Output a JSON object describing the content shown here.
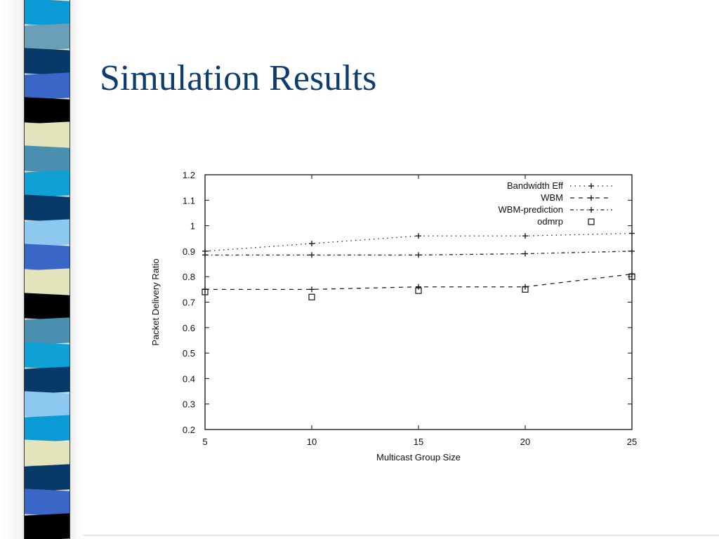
{
  "slide": {
    "title": "Simulation Results"
  },
  "decor": {
    "stripe_colors": [
      "#0a9ad6",
      "#6b9fb8",
      "#073a68",
      "#3a66c8",
      "#000000",
      "#e4e4bc",
      "#4a8eb0",
      "#0fa0d6",
      "#073a68",
      "#8cc8f0",
      "#3a66c8",
      "#e4e4bc",
      "#000000",
      "#4a8eb0",
      "#0fa0d6",
      "#073a68",
      "#8cc8f0",
      "#0a9ad6",
      "#e4e4bc",
      "#073a68",
      "#3a66c8",
      "#000000"
    ]
  },
  "chart_data": {
    "type": "line",
    "title": "",
    "xlabel": "Multicast Group Size",
    "ylabel": "Packet Delivery Ratio",
    "xlim": [
      5,
      25
    ],
    "ylim": [
      0.2,
      1.2
    ],
    "xticks": [
      "5",
      "10",
      "15",
      "20",
      "25"
    ],
    "yticks": [
      "0.2",
      "0.3",
      "0.4",
      "0.5",
      "0.6",
      "0.7",
      "0.8",
      "0.9",
      "1",
      "1.1",
      "1.2"
    ],
    "grid": false,
    "legend_position": "top-right",
    "series": [
      {
        "name": "Bandwidth Eff",
        "style": "dotted",
        "marker": "plus",
        "x": [
          5,
          10,
          15,
          20,
          25
        ],
        "y": [
          0.9,
          0.93,
          0.96,
          0.96,
          0.97
        ]
      },
      {
        "name": "WBM",
        "style": "dashed",
        "marker": "plus",
        "x": [
          5,
          10,
          15,
          20,
          25
        ],
        "y": [
          0.75,
          0.75,
          0.76,
          0.76,
          0.81
        ]
      },
      {
        "name": "WBM-prediction",
        "style": "dashdot",
        "marker": "plus",
        "x": [
          5,
          10,
          15,
          20,
          25
        ],
        "y": [
          0.885,
          0.885,
          0.885,
          0.89,
          0.9
        ]
      },
      {
        "name": "odmrp",
        "style": "none",
        "marker": "square",
        "x": [
          5,
          10,
          15,
          20,
          25
        ],
        "y": [
          0.74,
          0.72,
          0.745,
          0.75,
          0.8
        ]
      }
    ]
  }
}
